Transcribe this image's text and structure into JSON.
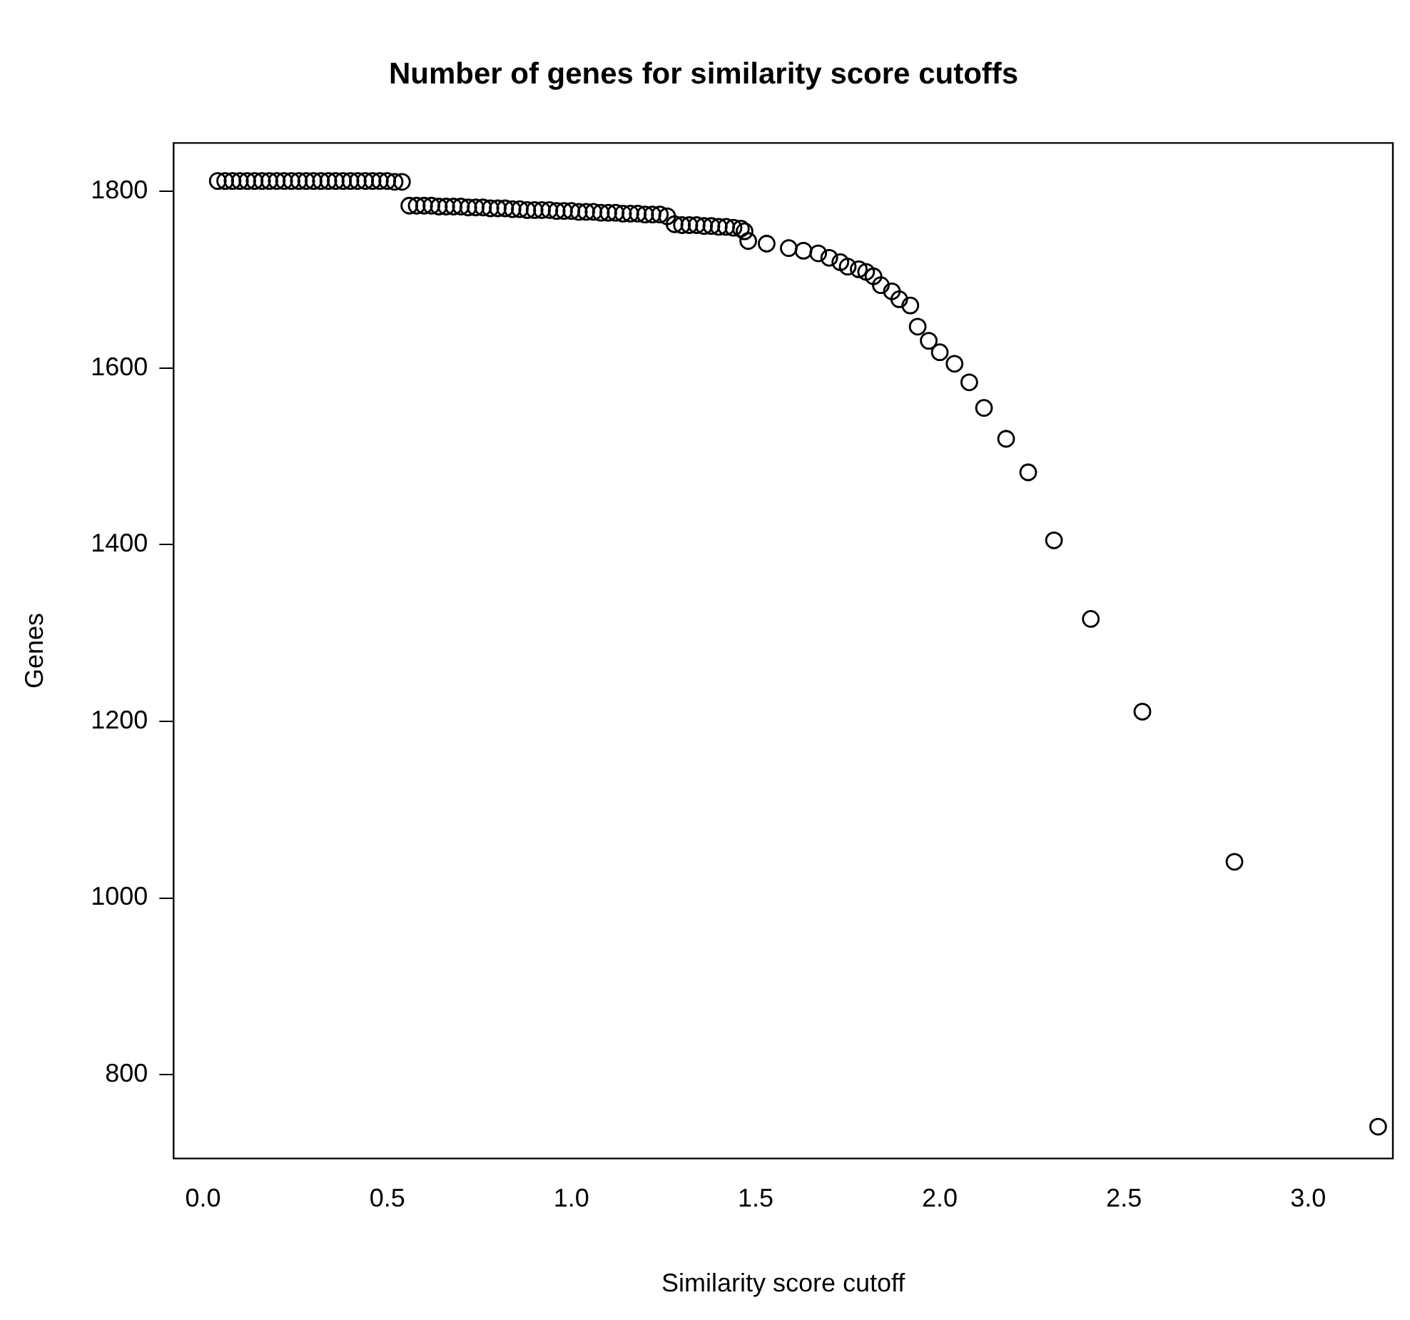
{
  "chart_data": {
    "type": "scatter",
    "title": "Number of genes for similarity score cutoffs",
    "xlabel": "Similarity score cutoff",
    "ylabel": "Genes",
    "x": [
      0.04,
      0.06,
      0.08,
      0.1,
      0.12,
      0.14,
      0.16,
      0.18,
      0.2,
      0.22,
      0.24,
      0.26,
      0.28,
      0.3,
      0.32,
      0.34,
      0.36,
      0.38,
      0.4,
      0.42,
      0.44,
      0.46,
      0.48,
      0.5,
      0.52,
      0.54,
      0.56,
      0.58,
      0.6,
      0.62,
      0.64,
      0.66,
      0.68,
      0.7,
      0.72,
      0.74,
      0.76,
      0.78,
      0.8,
      0.82,
      0.84,
      0.86,
      0.88,
      0.9,
      0.92,
      0.94,
      0.96,
      0.98,
      1.0,
      1.02,
      1.04,
      1.06,
      1.08,
      1.1,
      1.12,
      1.14,
      1.16,
      1.18,
      1.2,
      1.22,
      1.24,
      1.26,
      1.28,
      1.3,
      1.32,
      1.34,
      1.36,
      1.38,
      1.4,
      1.42,
      1.44,
      1.46,
      1.47,
      1.48,
      1.53,
      1.59,
      1.63,
      1.67,
      1.7,
      1.73,
      1.75,
      1.78,
      1.8,
      1.82,
      1.84,
      1.87,
      1.89,
      1.92,
      1.94,
      1.97,
      2.0,
      2.04,
      2.08,
      2.12,
      2.18,
      2.24,
      2.31,
      2.41,
      2.55,
      2.8,
      3.19
    ],
    "values": [
      1812,
      1812,
      1812,
      1812,
      1812,
      1812,
      1812,
      1812,
      1812,
      1812,
      1812,
      1812,
      1812,
      1812,
      1812,
      1812,
      1812,
      1812,
      1812,
      1812,
      1812,
      1812,
      1812,
      1812,
      1811,
      1811,
      1784,
      1784,
      1784,
      1784,
      1783,
      1783,
      1783,
      1783,
      1782,
      1782,
      1782,
      1781,
      1781,
      1781,
      1780,
      1780,
      1779,
      1779,
      1779,
      1779,
      1778,
      1778,
      1778,
      1777,
      1777,
      1777,
      1776,
      1776,
      1776,
      1775,
      1775,
      1775,
      1774,
      1774,
      1774,
      1772,
      1763,
      1762,
      1762,
      1762,
      1761,
      1761,
      1760,
      1760,
      1759,
      1758,
      1755,
      1744,
      1741,
      1736,
      1733,
      1730,
      1725,
      1720,
      1715,
      1712,
      1709,
      1704,
      1694,
      1687,
      1678,
      1671,
      1647,
      1631,
      1618,
      1605,
      1584,
      1555,
      1520,
      1482,
      1405,
      1316,
      1211,
      1041,
      741
    ],
    "color": "#000000",
    "marker": "circle",
    "xlim": [
      -0.08,
      3.23
    ],
    "xticks": [
      {
        "value": 0,
        "label": "0.0"
      },
      {
        "value": 0.5,
        "label": "0.5"
      },
      {
        "value": 1,
        "label": "1.0"
      },
      {
        "value": 1.5,
        "label": "1.5"
      },
      {
        "value": 2,
        "label": "2.0"
      },
      {
        "value": 2.5,
        "label": "2.5"
      },
      {
        "value": 3,
        "label": "3.0"
      }
    ],
    "ylim": [
      705,
      1855
    ],
    "yticks": [
      800,
      1000,
      1200,
      1400,
      1600,
      1800
    ],
    "grid": false,
    "legend": false
  }
}
